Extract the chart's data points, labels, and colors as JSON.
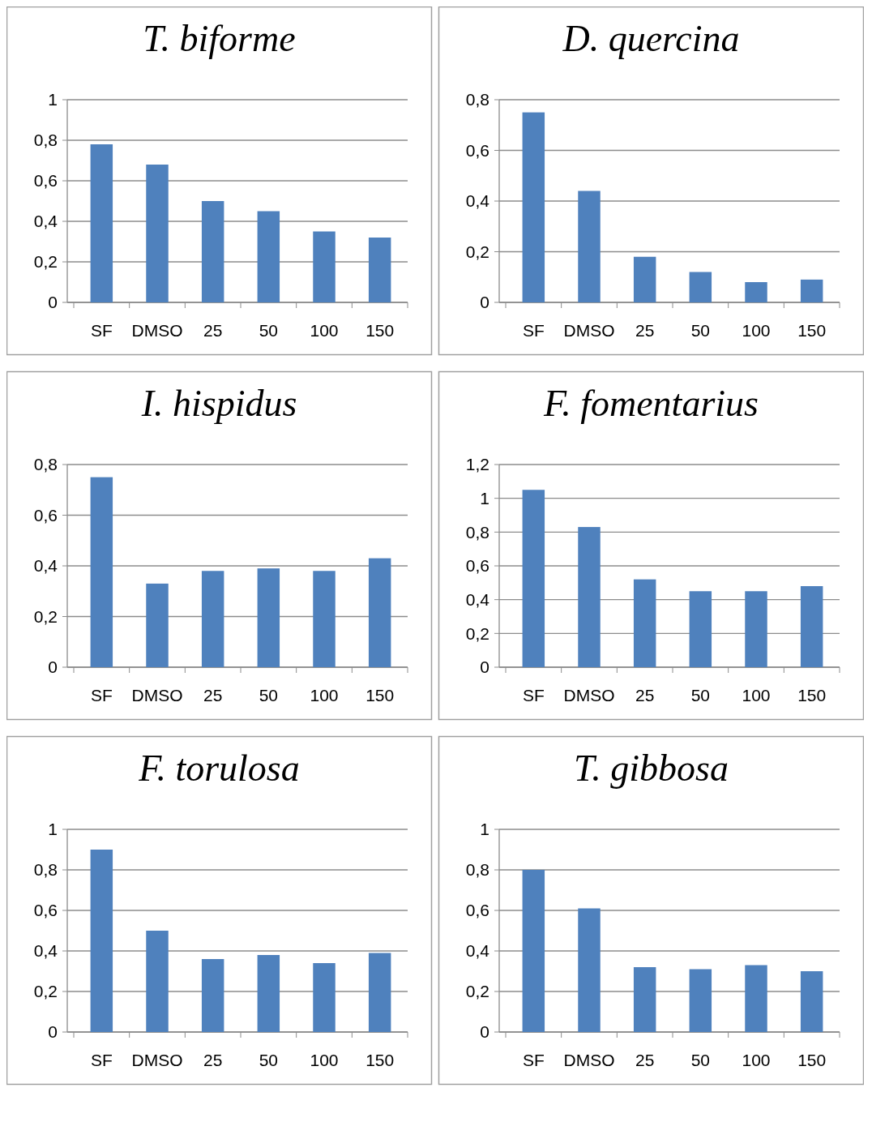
{
  "chart_data": [
    {
      "type": "bar",
      "title": "T. biforme",
      "categories": [
        "SF",
        "DMSO",
        "25",
        "50",
        "100",
        "150"
      ],
      "values": [
        0.78,
        0.68,
        0.5,
        0.45,
        0.35,
        0.32
      ],
      "color": "#4f81bd",
      "ylim": [
        0,
        1
      ],
      "yticks": [
        {
          "value": 0,
          "label": "0"
        },
        {
          "value": 0.2,
          "label": "0,2"
        },
        {
          "value": 0.4,
          "label": "0,4"
        },
        {
          "value": 0.6,
          "label": "0,6"
        },
        {
          "value": 0.8,
          "label": "0,8"
        },
        {
          "value": 1,
          "label": "1"
        }
      ],
      "grid": "y"
    },
    {
      "type": "bar",
      "title": "D. quercina",
      "categories": [
        "SF",
        "DMSO",
        "25",
        "50",
        "100",
        "150"
      ],
      "values": [
        0.75,
        0.44,
        0.18,
        0.12,
        0.08,
        0.09
      ],
      "color": "#4f81bd",
      "ylim": [
        0,
        0.8
      ],
      "yticks": [
        {
          "value": 0,
          "label": "0"
        },
        {
          "value": 0.2,
          "label": "0,2"
        },
        {
          "value": 0.4,
          "label": "0,4"
        },
        {
          "value": 0.6,
          "label": "0,6"
        },
        {
          "value": 0.8,
          "label": "0,8"
        }
      ],
      "grid": "y"
    },
    {
      "type": "bar",
      "title": "I. hispidus",
      "categories": [
        "SF",
        "DMSO",
        "25",
        "50",
        "100",
        "150"
      ],
      "values": [
        0.75,
        0.33,
        0.38,
        0.39,
        0.38,
        0.43
      ],
      "color": "#4f81bd",
      "ylim": [
        0,
        0.8
      ],
      "yticks": [
        {
          "value": 0,
          "label": "0"
        },
        {
          "value": 0.2,
          "label": "0,2"
        },
        {
          "value": 0.4,
          "label": "0,4"
        },
        {
          "value": 0.6,
          "label": "0,6"
        },
        {
          "value": 0.8,
          "label": "0,8"
        }
      ],
      "grid": "y"
    },
    {
      "type": "bar",
      "title": "F. fomentarius",
      "categories": [
        "SF",
        "DMSO",
        "25",
        "50",
        "100",
        "150"
      ],
      "values": [
        1.05,
        0.83,
        0.52,
        0.45,
        0.45,
        0.48
      ],
      "color": "#4f81bd",
      "ylim": [
        0,
        1.2
      ],
      "yticks": [
        {
          "value": 0,
          "label": "0"
        },
        {
          "value": 0.2,
          "label": "0,2"
        },
        {
          "value": 0.4,
          "label": "0,4"
        },
        {
          "value": 0.6,
          "label": "0,6"
        },
        {
          "value": 0.8,
          "label": "0,8"
        },
        {
          "value": 1,
          "label": "1"
        },
        {
          "value": 1.2,
          "label": "1,2"
        }
      ],
      "grid": "y"
    },
    {
      "type": "bar",
      "title": "F. torulosa",
      "categories": [
        "SF",
        "DMSO",
        "25",
        "50",
        "100",
        "150"
      ],
      "values": [
        0.9,
        0.5,
        0.36,
        0.38,
        0.34,
        0.39
      ],
      "color": "#4f81bd",
      "ylim": [
        0,
        1
      ],
      "yticks": [
        {
          "value": 0,
          "label": "0"
        },
        {
          "value": 0.2,
          "label": "0,2"
        },
        {
          "value": 0.4,
          "label": "0,4"
        },
        {
          "value": 0.6,
          "label": "0,6"
        },
        {
          "value": 0.8,
          "label": "0,8"
        },
        {
          "value": 1,
          "label": "1"
        }
      ],
      "grid": "y"
    },
    {
      "type": "bar",
      "title": "T. gibbosa",
      "categories": [
        "SF",
        "DMSO",
        "25",
        "50",
        "100",
        "150"
      ],
      "values": [
        0.8,
        0.61,
        0.32,
        0.31,
        0.33,
        0.3
      ],
      "color": "#4f81bd",
      "ylim": [
        0,
        1
      ],
      "yticks": [
        {
          "value": 0,
          "label": "0"
        },
        {
          "value": 0.2,
          "label": "0,2"
        },
        {
          "value": 0.4,
          "label": "0,4"
        },
        {
          "value": 0.6,
          "label": "0,6"
        },
        {
          "value": 0.8,
          "label": "0,8"
        },
        {
          "value": 1,
          "label": "1"
        }
      ],
      "grid": "y"
    }
  ]
}
